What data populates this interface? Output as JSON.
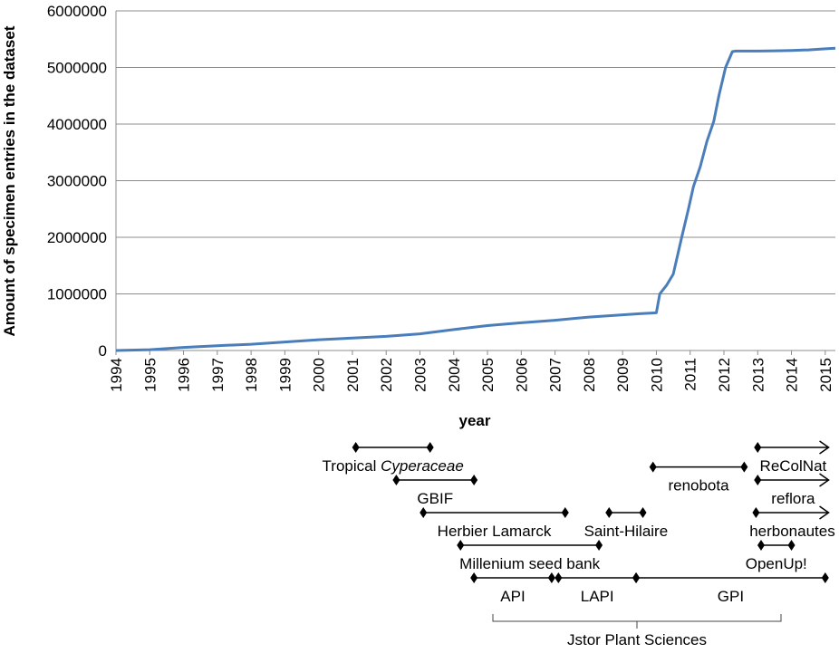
{
  "chart_data": {
    "type": "line",
    "title": "",
    "xlabel": "year",
    "ylabel": "Amount of specimen entries in the dataset",
    "xlim": [
      1994,
      2015.3
    ],
    "ylim": [
      0,
      6000000
    ],
    "y_ticks": [
      0,
      1000000,
      2000000,
      3000000,
      4000000,
      5000000,
      6000000
    ],
    "x_ticks": [
      1994,
      1995,
      1996,
      1997,
      1998,
      1999,
      2000,
      2001,
      2002,
      2003,
      2004,
      2005,
      2006,
      2007,
      2008,
      2009,
      2010,
      2011,
      2012,
      2013,
      2014,
      2015
    ],
    "grid": "horizontal",
    "series_color": "#4a7ebb",
    "series": [
      {
        "x": [
          1994,
          1995,
          1996,
          1997,
          1998,
          1999,
          2000,
          2001,
          2002,
          2003,
          2004,
          2005,
          2006,
          2007,
          2008,
          2009,
          2009.5,
          2010.0,
          2010.1,
          2010.3,
          2010.5,
          2010.75,
          2010.95,
          2011.1,
          2011.3,
          2011.5,
          2011.7,
          2011.85,
          2012.05,
          2012.25,
          2012.35,
          2012.5,
          2013,
          2013.5,
          2014,
          2014.5,
          2015,
          2015.3
        ],
        "y": [
          0,
          15000,
          55000,
          85000,
          110000,
          150000,
          190000,
          220000,
          250000,
          295000,
          370000,
          440000,
          490000,
          535000,
          590000,
          630000,
          650000,
          665000,
          1000000,
          1150000,
          1350000,
          2000000,
          2500000,
          2900000,
          3250000,
          3700000,
          4050000,
          4500000,
          5000000,
          5280000,
          5290000,
          5290000,
          5290000,
          5295000,
          5300000,
          5310000,
          5330000,
          5340000
        ]
      }
    ]
  },
  "timeline": {
    "projects": [
      {
        "label": "Tropical ",
        "italic": "Cyperaceae",
        "start": 2001.1,
        "end": 2003.3,
        "arrow": false,
        "row": 0
      },
      {
        "label": "renobota",
        "start": 2009.9,
        "end": 2012.6,
        "arrow": false,
        "row": 0.6
      },
      {
        "label": "ReColNat",
        "start": 2013.0,
        "end": 2015.1,
        "arrow": true,
        "row": 0
      },
      {
        "label": "GBIF",
        "start": 2002.3,
        "end": 2004.6,
        "arrow": false,
        "row": 1
      },
      {
        "label": "reflora",
        "start": 2013.0,
        "end": 2015.1,
        "arrow": true,
        "row": 1
      },
      {
        "label": "Herbier Lamarck",
        "start": 2003.1,
        "end": 2007.3,
        "arrow": false,
        "row": 2
      },
      {
        "label": "Saint-Hilaire",
        "start": 2008.6,
        "end": 2009.6,
        "arrow": false,
        "row": 2
      },
      {
        "label": "herbonautes",
        "start": 2012.95,
        "end": 2015.1,
        "arrow": true,
        "row": 2
      },
      {
        "label": "Millenium seed bank",
        "start": 2004.2,
        "end": 2008.3,
        "arrow": false,
        "row": 3
      },
      {
        "label": "OpenUp!",
        "start": 2013.1,
        "end": 2014.0,
        "arrow": false,
        "row": 3
      },
      {
        "label": "API",
        "start": 2004.6,
        "end": 2006.9,
        "arrow": false,
        "row": 4
      },
      {
        "label": "LAPI",
        "start": 2007.1,
        "end": 2009.4,
        "arrow": false,
        "row": 4
      },
      {
        "label": "GPI",
        "start": 2009.4,
        "end": 2015.0,
        "arrow": false,
        "row": 4
      }
    ],
    "group_label": "Jstor Plant Sciences"
  }
}
